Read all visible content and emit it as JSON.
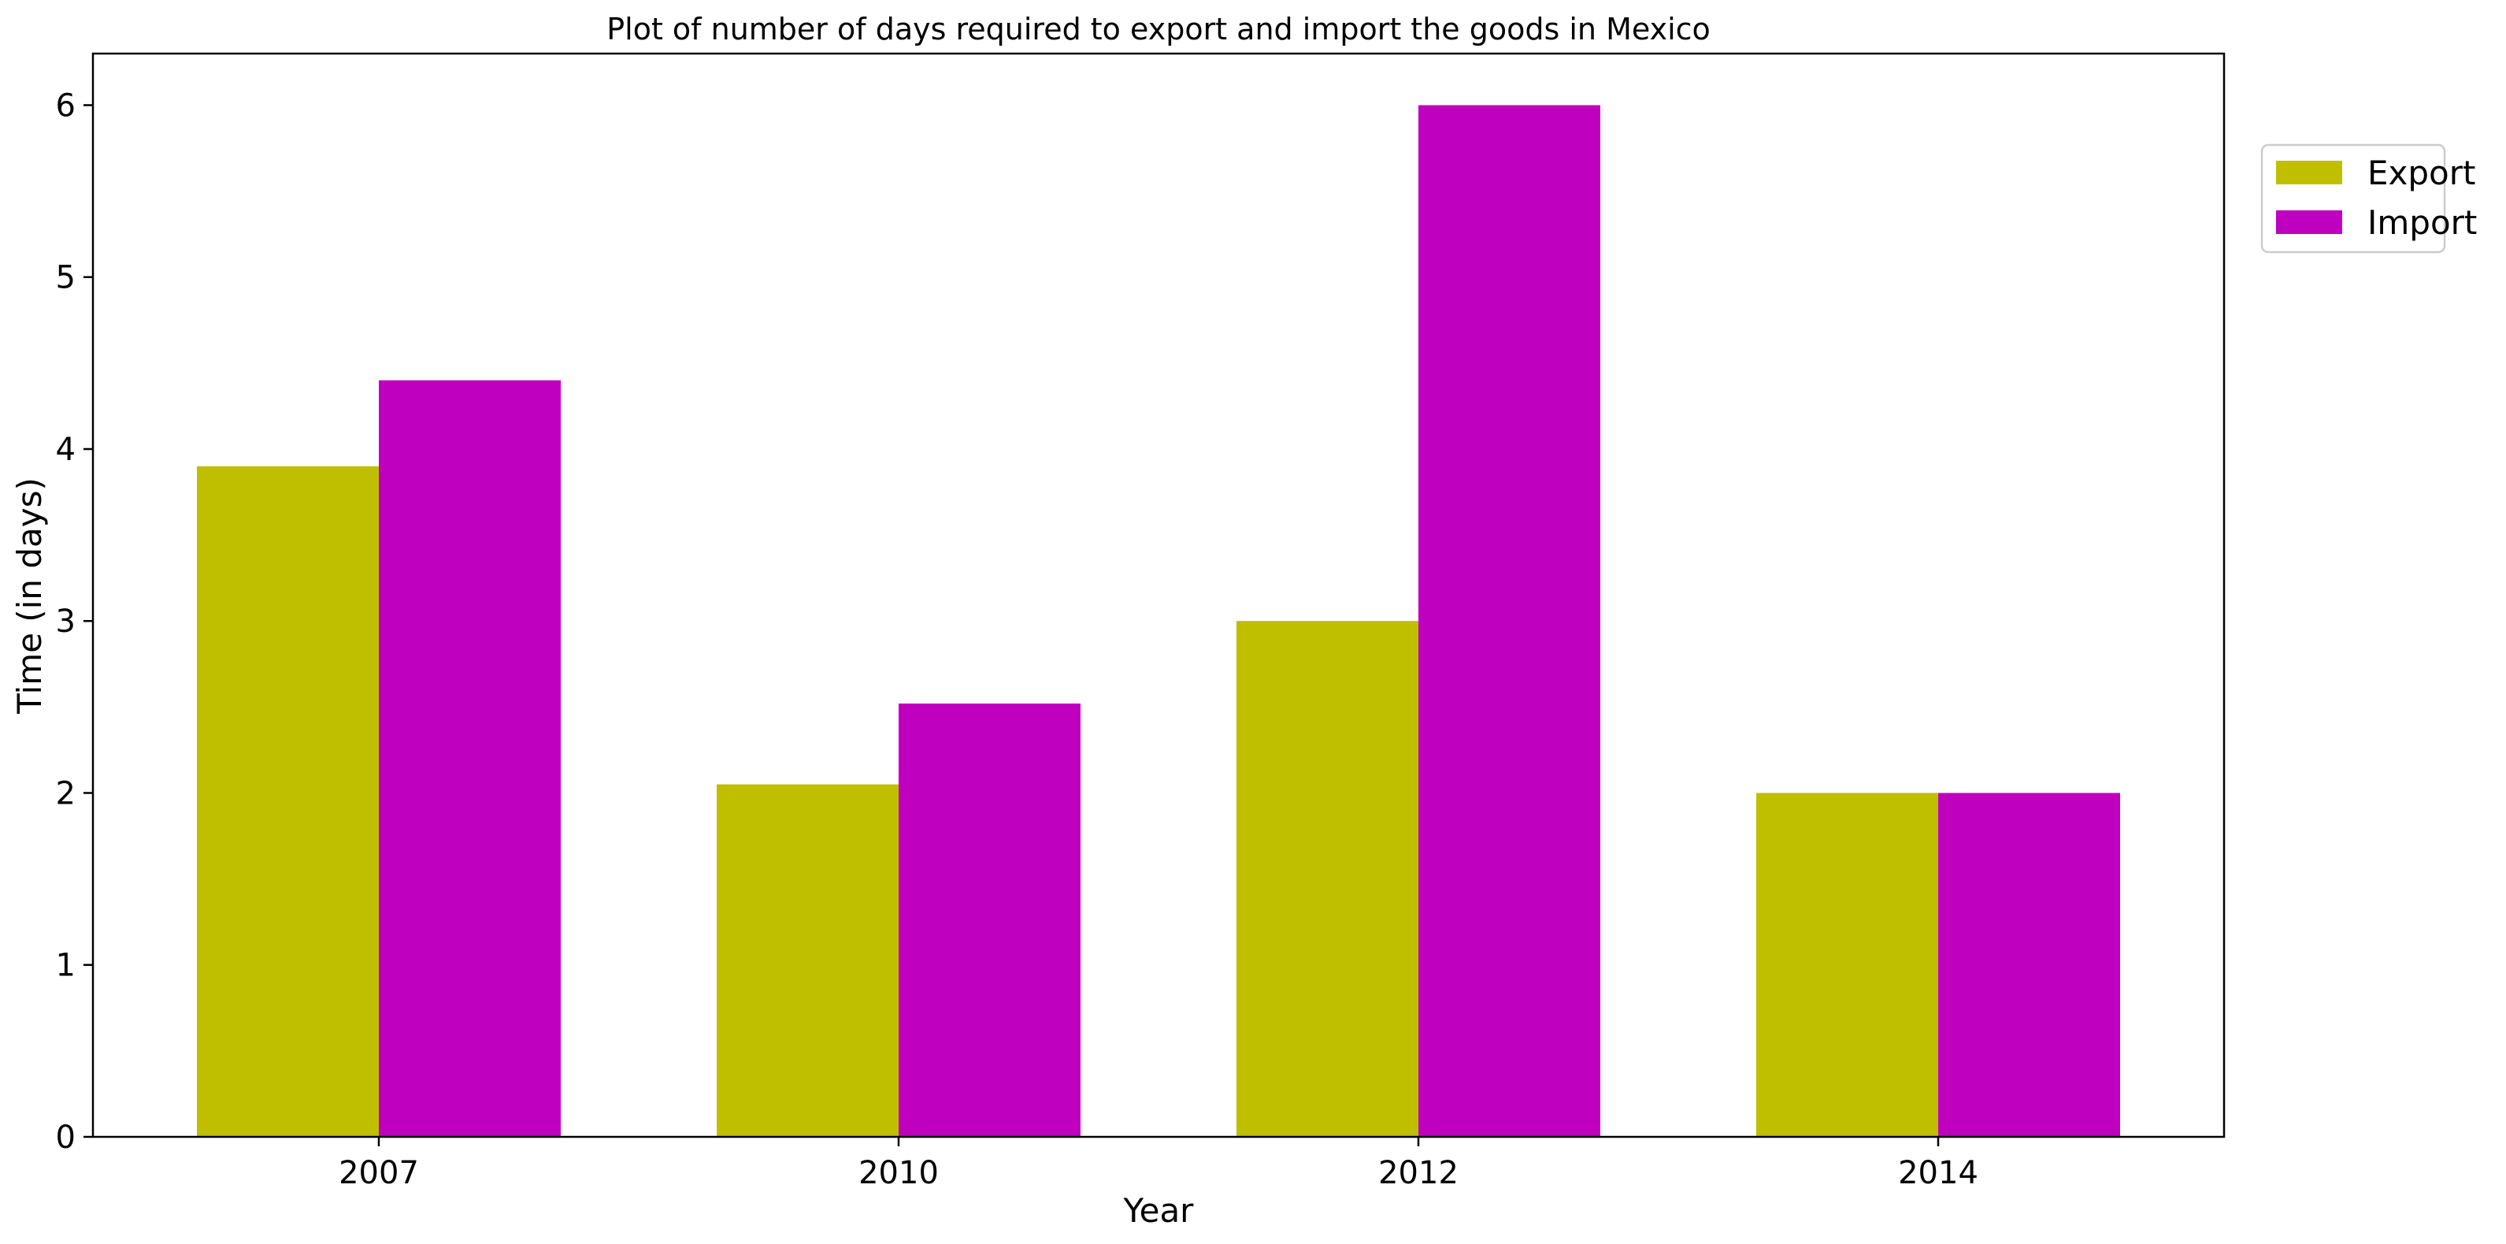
{
  "chart_data": {
    "type": "bar",
    "title": "Plot of number of days required to export and import the goods in Mexico",
    "xlabel": "Year",
    "ylabel": "Time (in days)",
    "categories": [
      "2007",
      "2010",
      "2012",
      "2014"
    ],
    "series": [
      {
        "name": "Export",
        "color": "#bfbf00",
        "values": [
          3.9,
          2.05,
          3.0,
          2.0
        ]
      },
      {
        "name": "Import",
        "color": "#bf00bf",
        "values": [
          4.4,
          2.52,
          6.0,
          2.0
        ]
      }
    ],
    "ylim": [
      0,
      6.3
    ],
    "yticks": [
      0,
      1,
      2,
      3,
      4,
      5,
      6
    ],
    "grid": false,
    "legend_position": "upper right, outside plot"
  }
}
